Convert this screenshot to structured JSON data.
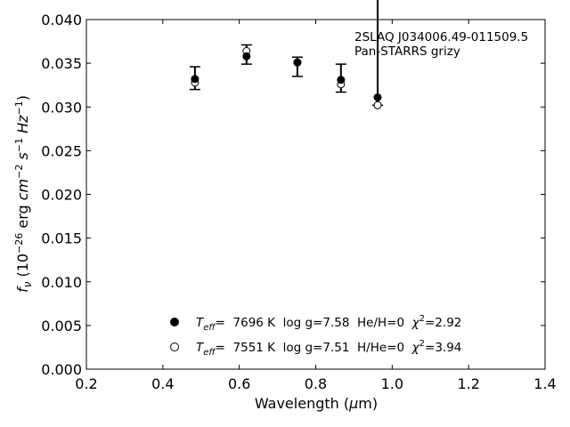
{
  "chart_data": {
    "type": "scatter",
    "xlabel_main": "Wavelength (",
    "xlabel_unit_mu": "μ",
    "xlabel_unit_rest": "m)",
    "ylabel_f": "f",
    "ylabel_nu": "ν",
    "ylabel_open": " (10",
    "ylabel_exp26": "−26",
    "ylabel_erg": " erg ",
    "ylabel_cm": "cm",
    "ylabel_exp2": "−2",
    "ylabel_s": " s",
    "ylabel_exp1a": "−1",
    "ylabel_hz": " Hz",
    "ylabel_exp1b": "−1",
    "ylabel_close": ")",
    "xlim": [
      0.2,
      1.4
    ],
    "ylim": [
      0.0,
      0.04
    ],
    "x_ticks": [
      "0.2",
      "0.4",
      "0.6",
      "0.8",
      "1.0",
      "1.2",
      "1.4"
    ],
    "y_ticks": [
      "0.000",
      "0.005",
      "0.010",
      "0.015",
      "0.020",
      "0.025",
      "0.030",
      "0.035",
      "0.040"
    ],
    "annotation_lines": [
      "2SLAQ J034006.49-011509.5",
      "Pan-STARRS grizy"
    ],
    "observed": {
      "x": [
        0.484,
        0.619,
        0.752,
        0.866,
        0.962
      ],
      "y": [
        0.0333,
        0.036,
        0.0346,
        0.0333,
        0.0367
      ],
      "yerr": [
        0.0013,
        0.0011,
        0.0011,
        0.0016,
        0.0065
      ]
    },
    "series": [
      {
        "filled": true,
        "x": [
          0.484,
          0.619,
          0.752,
          0.866,
          0.962
        ],
        "y": [
          0.0332,
          0.0358,
          0.0351,
          0.0331,
          0.0311
        ]
      },
      {
        "filled": false,
        "x": [
          0.484,
          0.619,
          0.752,
          0.866,
          0.962
        ],
        "y": [
          0.0328,
          0.0364,
          0.0351,
          0.0326,
          0.0302
        ]
      }
    ],
    "legend": [
      {
        "marker": "filled",
        "t_symbol": "T",
        "t_sub": "eff",
        "teff_text": "=  7696 K  log g=7.58  He/H=0  ",
        "chi": "χ",
        "chi_sup": "2",
        "chi_val": "=2.92"
      },
      {
        "marker": "open",
        "t_symbol": "T",
        "t_sub": "eff",
        "teff_text": "=  7551 K  log g=7.51  H/He=0  ",
        "chi": "χ",
        "chi_sup": "2",
        "chi_val": "=3.94"
      }
    ]
  }
}
